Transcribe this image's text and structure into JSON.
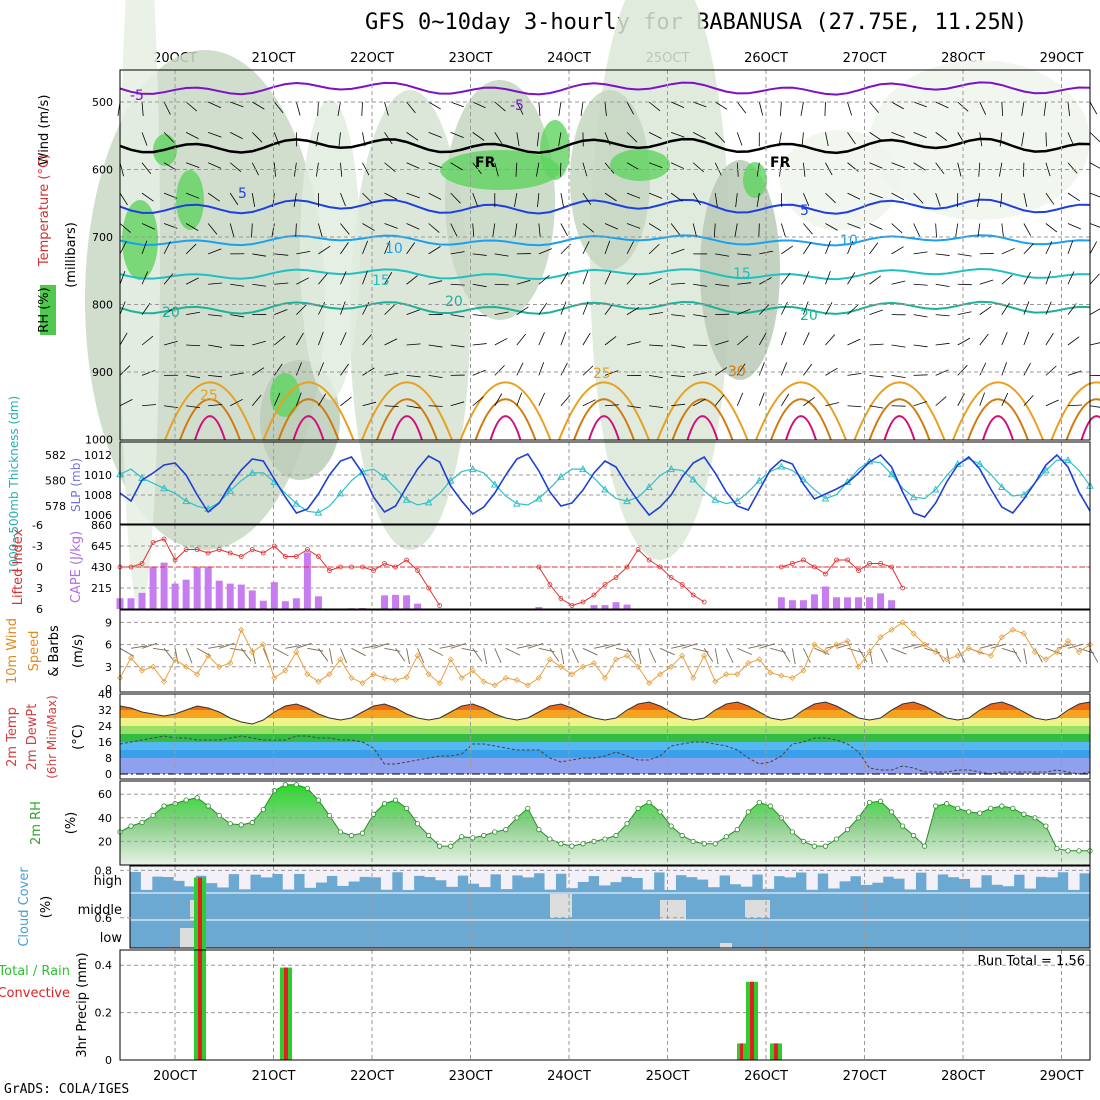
{
  "title": "GFS 0~10day 3-hourly for BABANUSA (27.75E, 11.25N)",
  "footer": "GrADS: COLA/IGES",
  "dates": [
    "20OCT",
    "21OCT",
    "22OCT",
    "23OCT",
    "24OCT",
    "25OCT",
    "26OCT",
    "27OCT",
    "28OCT",
    "29OCT"
  ],
  "colors": {
    "grid": "#9a9a9a",
    "purple": "#7b12c7",
    "black": "#000000",
    "blue": "#1e3fe0",
    "lightblue": "#1aa0f0",
    "cyan": "#20c0c0",
    "teal": "#1ab39a",
    "orange": "#e8a020",
    "darkorange": "#d07a10",
    "magenta": "#d0107a",
    "slp": "#1f3fd0",
    "thick": "#30c0c8",
    "cape": "#c77cf0",
    "li": "#e03030",
    "wind": "#e8a040",
    "rh": "#31a531",
    "cloudblue": "#6ca9d2",
    "cloudwhite": "#f3f0f7",
    "precipGreen": "#2ecc2e",
    "precipRed": "#e02020"
  },
  "panels": {
    "upper": {
      "ylabels": [
        "Wind (m/s)",
        "Temperature (°C)",
        "RH (%)"
      ],
      "units": "(millibars)",
      "ticks": [
        "500",
        "600",
        "700",
        "800",
        "900",
        "1000"
      ],
      "isotherm_labels": [
        "-5",
        "-5",
        "FR",
        "FR",
        "5",
        "5",
        "10",
        "10",
        "15",
        "15",
        "20",
        "20",
        "20",
        "25",
        "25",
        "30"
      ]
    },
    "slp": {
      "ylabel_left": "1000~500mb Thickness (dm)",
      "ylabel_right": "SLP (mb)",
      "ticks_left": [
        "582",
        "580",
        "578"
      ],
      "ticks_right": [
        "1012",
        "1010",
        "1008",
        "1006"
      ]
    },
    "cape": {
      "ylabel_left": "Lifted Index",
      "ylabel_right": "CAPE (J/kg)",
      "ticks_left": [
        "-6",
        "-3",
        "0",
        "3",
        "6"
      ],
      "ticks_right": [
        "860",
        "645",
        "430",
        "215"
      ]
    },
    "wind": {
      "ylabel": [
        "10m Wind",
        "Speed",
        "& Barbs"
      ],
      "units": "(m/s)",
      "ticks": [
        "9",
        "6",
        "3",
        "0"
      ]
    },
    "temp": {
      "ylabel": [
        "2m Temp",
        "2m DewPt",
        "(6hr Min/Max)"
      ],
      "units": "(°C)",
      "ticks": [
        "40",
        "32",
        "24",
        "16",
        "8",
        "0"
      ]
    },
    "rh": {
      "ylabel": "2m RH",
      "units": "(%)",
      "ticks": [
        "60",
        "40",
        "20"
      ]
    },
    "cloud": {
      "ylabel": "Cloud Cover",
      "units": "(%)",
      "levels": [
        "high",
        "middle",
        "low"
      ]
    },
    "precip": {
      "ylabel_left": "Total / Rain",
      "ylabel_right": "Convective",
      "ylabel": "3hr Precip (mm)",
      "ticks": [
        "0.8",
        "0.6",
        "0.4",
        "0.2",
        "0"
      ],
      "run_total": "Run Total = 1.56"
    }
  },
  "chart_data": [
    {
      "type": "line",
      "title": "1000~500mb Thickness & SLP",
      "series": [
        {
          "name": "SLP (mb)",
          "values": [
            1008.2,
            1007.4,
            1009.5,
            1010.2,
            1011.0,
            1011.2,
            1010.0,
            1008.0,
            1006.3,
            1007.2,
            1009.0,
            1010.5,
            1011.6,
            1011.4,
            1009.6,
            1007.8,
            1006.2,
            1006.6,
            1008.1,
            1010.0,
            1011.4,
            1011.8,
            1010.2,
            1007.8,
            1006.3,
            1006.9,
            1008.8,
            1010.6,
            1011.9,
            1011.3,
            1008.9,
            1007.4,
            1006.1,
            1006.8,
            1008.2,
            1010.0,
            1011.6,
            1012.1,
            1010.4,
            1008.3,
            1006.9,
            1007.2,
            1008.5,
            1010.2,
            1011.4,
            1010.8,
            1009.0,
            1007.4,
            1006.0,
            1006.8,
            1008.0,
            1009.8,
            1011.2,
            1011.8,
            1010.2,
            1008.3,
            1006.9,
            1006.5,
            1008.5,
            1010.5,
            1011.5,
            1011.1,
            1009.1,
            1007.6,
            1008.1,
            1008.6,
            1009.2,
            1010.2,
            1011.3,
            1012.0,
            1010.8,
            1008.3,
            1006.2,
            1005.8,
            1007.2,
            1009.3,
            1011.0,
            1011.8,
            1010.6,
            1008.6,
            1006.8,
            1006.2,
            1007.6,
            1009.2,
            1011.0,
            1012.0,
            1010.8,
            1008.3,
            1006.4
          ]
        },
        {
          "name": "Thickness (dm)",
          "values": [
            580.5,
            580.9,
            580.2,
            579.8,
            579.4,
            579.0,
            578.4,
            578.0,
            577.8,
            578.3,
            579.2,
            580.0,
            580.6,
            580.6,
            579.9,
            579.0,
            578.2,
            577.6,
            577.5,
            578.0,
            579.0,
            580.0,
            580.7,
            580.9,
            580.3,
            579.4,
            578.5,
            578.1,
            578.3,
            579.0,
            580.0,
            580.7,
            580.9,
            580.6,
            579.7,
            578.8,
            578.2,
            578.1,
            578.6,
            579.4,
            580.3,
            580.9,
            580.9,
            580.2,
            579.3,
            578.6,
            578.4,
            578.7,
            579.5,
            580.4,
            580.9,
            580.8,
            580.1,
            579.2,
            578.5,
            578.2,
            578.4,
            579.1,
            580.0,
            580.7,
            581.1,
            580.8,
            580.1,
            579.3,
            578.6,
            578.9,
            579.9,
            580.9,
            581.5,
            581.4,
            580.5,
            579.4,
            578.7,
            578.6,
            579.3,
            580.4,
            581.3,
            581.7,
            581.3,
            580.5,
            579.5,
            578.8,
            578.9,
            579.8,
            580.8,
            581.6,
            581.6,
            580.8,
            579.6
          ]
        }
      ]
    },
    {
      "type": "bar",
      "title": "CAPE (J/kg) & Lifted Index",
      "series": [
        {
          "name": "CAPE (J/kg)",
          "values": [
            110,
            110,
            165,
            430,
            475,
            260,
            300,
            430,
            430,
            290,
            260,
            250,
            190,
            85,
            275,
            80,
            110,
            580,
            130,
            0,
            0,
            8,
            10,
            0,
            140,
            145,
            140,
            55,
            0,
            0,
            0,
            0,
            0,
            0,
            0,
            0,
            0,
            0,
            20,
            0,
            0,
            0,
            0,
            40,
            40,
            70,
            45,
            0,
            0,
            0,
            0,
            0,
            0,
            0,
            0,
            0,
            0,
            0,
            0,
            0,
            120,
            90,
            90,
            150,
            230,
            120,
            120,
            120,
            120,
            160,
            90,
            0,
            0,
            0,
            0,
            0,
            0,
            0,
            0,
            0,
            0,
            0,
            0,
            0,
            0,
            0,
            0,
            0,
            0
          ]
        },
        {
          "name": "Lifted Index",
          "values": [
            0,
            0,
            -0.5,
            -3.5,
            -4.0,
            -1.0,
            -2.5,
            -2.5,
            -2.0,
            -2.5,
            -2.0,
            -1.5,
            -2.5,
            -2.0,
            -3.0,
            -1.5,
            -1.5,
            -2.5,
            -1.5,
            0.5,
            0,
            0,
            0,
            0.5,
            -0.5,
            0,
            -1,
            0.5,
            3,
            5.5,
            6,
            6,
            6,
            6,
            6,
            6,
            6,
            6,
            0,
            2.5,
            4.5,
            5.5,
            5,
            4,
            2.5,
            1.5,
            0,
            -2.5,
            -1,
            0,
            1.5,
            2.5,
            4,
            5,
            6,
            6,
            6,
            6,
            6,
            6,
            0,
            -0.5,
            -1,
            0,
            1,
            -1,
            -1,
            0.5,
            -0.5,
            -0.5,
            0,
            3,
            6,
            6,
            6,
            6,
            6,
            6,
            6,
            6,
            6,
            6,
            6,
            6,
            6,
            6,
            6,
            6,
            6
          ]
        }
      ]
    },
    {
      "type": "line",
      "title": "10m Wind Speed",
      "series": [
        {
          "name": "10m Wind Speed (m/s)",
          "values": [
            1.5,
            4.2,
            2.5,
            3.0,
            1.0,
            4.0,
            3.0,
            2.0,
            4.5,
            3.0,
            3.5,
            8.0,
            5.0,
            6.0,
            1.5,
            2.5,
            5.0,
            2.0,
            1.0,
            2.0,
            4.0,
            1.5,
            0.8,
            2.0,
            1.5,
            1.2,
            1.6,
            4.5,
            2.0,
            0.8,
            4.0,
            1.5,
            2.5,
            1.0,
            0.5,
            1.5,
            1.2,
            0.5,
            1.5,
            4.0,
            3.0,
            2.0,
            3.0,
            3.5,
            1.5,
            4.0,
            4.5,
            3.0,
            0.8,
            2.0,
            3.0,
            4.5,
            1.5,
            4.5,
            1.0,
            2.0,
            2.0,
            3.5,
            4.0,
            2.2,
            1.8,
            1.5,
            2.5,
            6.0,
            5.0,
            6.0,
            6.5,
            3.0,
            5.0,
            7.0,
            8.0,
            9.0,
            7.5,
            6.0,
            5.0,
            4.0,
            4.5,
            5.5,
            5.0,
            4.5,
            7.0,
            8.0,
            7.5,
            5.0,
            4.0,
            5.0,
            6.5,
            5.0,
            6.0
          ]
        }
      ]
    },
    {
      "type": "line",
      "title": "2m Temp / DewPt",
      "series": [
        {
          "name": "2m Temp (°C)",
          "values": [
            34,
            33,
            31,
            30,
            29,
            30,
            32,
            34,
            33,
            31,
            28,
            26,
            25,
            27,
            31,
            34,
            35,
            33,
            30,
            28,
            27,
            28,
            31,
            34,
            35,
            33,
            30,
            28,
            27,
            28,
            31,
            34,
            35,
            33,
            30,
            28,
            27,
            28,
            31,
            34,
            35,
            33,
            30,
            28,
            27,
            28,
            32,
            35,
            36,
            34,
            31,
            28,
            27,
            28,
            32,
            35,
            36,
            34,
            31,
            28,
            27,
            28,
            32,
            35,
            36,
            34,
            31,
            28,
            27,
            28,
            32,
            35,
            36,
            34,
            31,
            28,
            27,
            28,
            32,
            35,
            36,
            34,
            31,
            28,
            27,
            28,
            32,
            35,
            36
          ]
        },
        {
          "name": "2m DewPt (°C)",
          "values": [
            15,
            16,
            17,
            18,
            19,
            18,
            18,
            17,
            17,
            17,
            18,
            19,
            18,
            17,
            17,
            17,
            19,
            19,
            18,
            18,
            17,
            17,
            16,
            13,
            5,
            5,
            6,
            7,
            8,
            9,
            9,
            10,
            15,
            15,
            14,
            13,
            12,
            12,
            12,
            8,
            6,
            7,
            8,
            8,
            9,
            11,
            9,
            7,
            7,
            9,
            14,
            15,
            16,
            16,
            15,
            14,
            12,
            8,
            5,
            6,
            9,
            15,
            16,
            18,
            18,
            17,
            15,
            11,
            3,
            2,
            2,
            4,
            3,
            1,
            1,
            1,
            2,
            2,
            1,
            0,
            1,
            1,
            1,
            1,
            1,
            2,
            1,
            0,
            1
          ]
        }
      ]
    },
    {
      "type": "line",
      "title": "2m RH",
      "series": [
        {
          "name": "2m RH (%)",
          "values": [
            28,
            33,
            36,
            42,
            50,
            52,
            55,
            57,
            50,
            42,
            35,
            34,
            36,
            47,
            63,
            68,
            68,
            65,
            55,
            42,
            28,
            25,
            27,
            43,
            52,
            55,
            48,
            35,
            25,
            16,
            16,
            24,
            23,
            25,
            28,
            30,
            40,
            48,
            30,
            22,
            18,
            16,
            18,
            20,
            22,
            25,
            35,
            48,
            53,
            45,
            33,
            25,
            20,
            18,
            18,
            24,
            30,
            45,
            53,
            50,
            40,
            28,
            20,
            16,
            16,
            22,
            30,
            40,
            53,
            54,
            45,
            33,
            25,
            16,
            50,
            52,
            48,
            45,
            44,
            48,
            50,
            48,
            43,
            40,
            33,
            14,
            12,
            12,
            12
          ]
        }
      ]
    },
    {
      "type": "bar",
      "title": "3hr Precip (mm)",
      "x": [
        "20OCT",
        "21OCT",
        "25OCT",
        "26OCT"
      ],
      "series": [
        {
          "name": "Total / Rain",
          "values": [
            0.77,
            0.39,
            0.33,
            0.07
          ]
        },
        {
          "name": "Convective",
          "values": [
            0.77,
            0.39,
            0.33,
            0.07
          ]
        }
      ],
      "run_total": "Run Total = 1.56"
    }
  ]
}
